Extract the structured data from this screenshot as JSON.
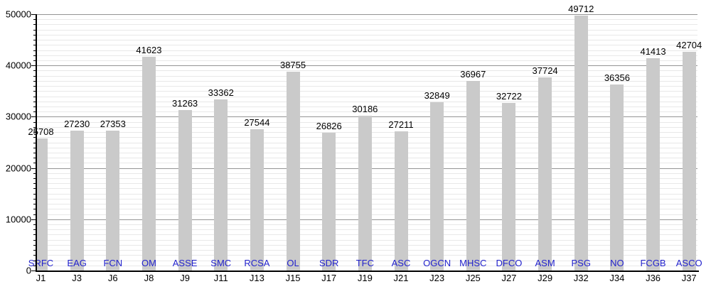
{
  "chart_data": {
    "type": "bar",
    "title": "",
    "xlabel": "",
    "ylabel": "",
    "categories": [
      "J1",
      "J3",
      "J6",
      "J8",
      "J9",
      "J11",
      "J13",
      "J15",
      "J17",
      "J19",
      "J21",
      "J23",
      "J25",
      "J27",
      "J29",
      "J32",
      "J34",
      "J36",
      "J37"
    ],
    "bar_bottom_labels": [
      "SRFC",
      "EAG",
      "FCN",
      "OM",
      "ASSE",
      "SMC",
      "RCSA",
      "OL",
      "SDR",
      "TFC",
      "ASC",
      "OGCN",
      "MHSC",
      "DFCO",
      "ASM",
      "PSG",
      "NO",
      "FCGB",
      "ASCO"
    ],
    "values": [
      25708,
      27230,
      27353,
      41623,
      31263,
      33362,
      27544,
      38755,
      26826,
      30186,
      27211,
      32849,
      36967,
      32722,
      37724,
      49712,
      36356,
      41413,
      42704
    ],
    "value_labels_shown": true,
    "ylim": [
      0,
      50000
    ],
    "y_major_tick_interval": 10000,
    "y_minor_tick_interval": 1000,
    "y_tick_labels": [
      "0",
      "10000",
      "20000",
      "30000",
      "40000",
      "50000"
    ],
    "grid": {
      "major_horizontal": true,
      "minor_horizontal": true,
      "vertical": false
    },
    "legend": "none",
    "colors": {
      "bar": "#cacaca",
      "major_grid": "#949494",
      "minor_grid": "#e8e8e8",
      "axis": "#000000",
      "value_label": "#000000",
      "bottom_label_link": "#2222cc",
      "tick_label": "#000000"
    }
  }
}
